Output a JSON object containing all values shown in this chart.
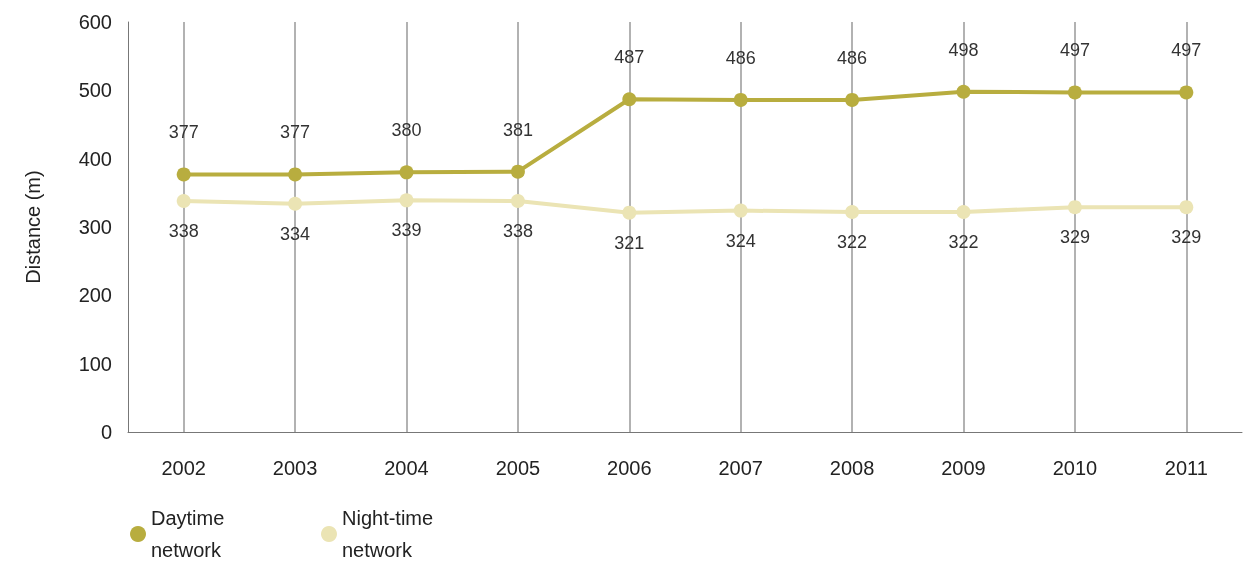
{
  "chart_data": {
    "type": "line",
    "ylabel": "Distance (m)",
    "categories": [
      "2002",
      "2003",
      "2004",
      "2005",
      "2006",
      "2007",
      "2008",
      "2009",
      "2010",
      "2011"
    ],
    "series": [
      {
        "name": "Daytime network",
        "color": "#b8ad3f",
        "values": [
          377,
          377,
          380,
          381,
          487,
          486,
          486,
          498,
          497,
          497
        ]
      },
      {
        "name": "Night-time network",
        "color": "#ebe4b4",
        "values": [
          338,
          334,
          339,
          338,
          321,
          324,
          322,
          322,
          329,
          329
        ]
      }
    ],
    "ylim": [
      0,
      600
    ],
    "yticks": [
      0,
      100,
      200,
      300,
      400,
      500,
      600
    ],
    "grid": "x",
    "legend": "bottom left",
    "marker": "circle",
    "line_style": "solid",
    "data_labels": true
  }
}
